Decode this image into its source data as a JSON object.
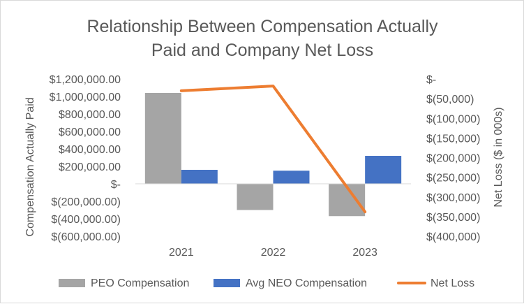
{
  "chart_data": {
    "type": "bar",
    "title": [
      "Relationship Between Compensation Actually",
      "Paid and Company Net Loss"
    ],
    "categories": [
      "2021",
      "2022",
      "2023"
    ],
    "ylabel": "Compensation Actually Paid",
    "y2label": "Net Loss ($ in 000s)",
    "ylim": [
      -600000,
      1200000
    ],
    "y2lim": [
      -400000,
      0
    ],
    "y_ticks": [
      1200000,
      1000000,
      800000,
      600000,
      400000,
      200000,
      0,
      -200000,
      -400000,
      -600000
    ],
    "y_tick_labels": [
      "$1,200,000.00",
      "$1,000,000.00",
      "$800,000.00",
      "$600,000.00",
      "$400,000.00",
      "$200,000.00",
      "$-",
      "$(200,000.00)",
      "$(400,000.00)",
      "$(600,000.00)"
    ],
    "y2_ticks": [
      0,
      -50000,
      -100000,
      -150000,
      -200000,
      -250000,
      -300000,
      -350000,
      -400000
    ],
    "y2_tick_labels": [
      "$-",
      "$(50,000)",
      "$(100,000)",
      "$(150,000)",
      "$(200,000)",
      "$(250,000)",
      "$(300,000)",
      "$(350,000)",
      "$(400,000)"
    ],
    "series": [
      {
        "name": "PEO Compensation",
        "kind": "bar",
        "axis": "left",
        "color": "#a5a5a5",
        "values": [
          1040000,
          -300000,
          -370000
        ]
      },
      {
        "name": "Avg NEO Compensation",
        "kind": "bar",
        "axis": "left",
        "color": "#4472c4",
        "values": [
          160000,
          150000,
          320000
        ]
      },
      {
        "name": "Net Loss",
        "kind": "line",
        "axis": "right",
        "color": "#ed7d31",
        "values": [
          -30000,
          -18000,
          -338000
        ]
      }
    ],
    "legend_position": "bottom",
    "grid": false
  }
}
